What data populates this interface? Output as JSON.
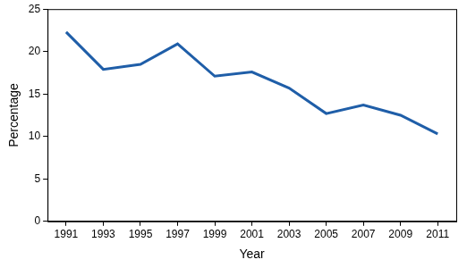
{
  "chart_data": {
    "type": "line",
    "x_label": "Year",
    "y_label": "Percentage",
    "categories": [
      "1991",
      "1993",
      "1995",
      "1997",
      "1999",
      "2001",
      "2003",
      "2005",
      "2007",
      "2009",
      "2011"
    ],
    "values": [
      22.3,
      17.9,
      18.5,
      20.9,
      17.1,
      17.6,
      15.7,
      12.7,
      13.7,
      12.5,
      10.3
    ],
    "color": "#1f5ea8",
    "ylim": [
      0,
      25
    ],
    "yticks": [
      0,
      5,
      10,
      15,
      20,
      25
    ],
    "grid": false
  }
}
